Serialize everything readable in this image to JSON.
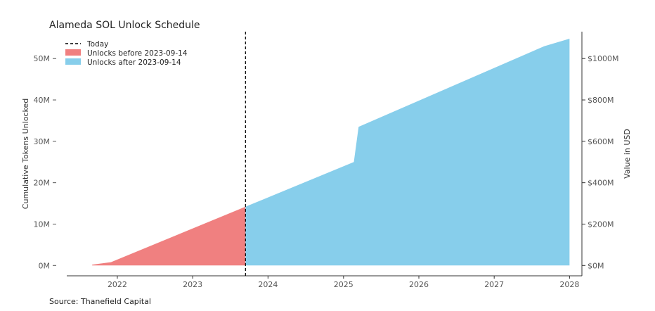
{
  "chart_data": {
    "type": "area",
    "title": "Alameda SOL Unlock Schedule",
    "source": "Source: Thanefield Capital",
    "ylabel": "Cumulative Tokens Unlocked",
    "y2label": "Value in USD",
    "xlim": [
      "2021-05-01",
      "2028-03-01"
    ],
    "ylim": [
      -2500000,
      56500000
    ],
    "y2lim": [
      -50000000,
      1130000000
    ],
    "x_ticks": [
      {
        "value": "2022-01-01",
        "label": "2022"
      },
      {
        "value": "2023-01-01",
        "label": "2023"
      },
      {
        "value": "2024-01-01",
        "label": "2024"
      },
      {
        "value": "2025-01-01",
        "label": "2025"
      },
      {
        "value": "2026-01-01",
        "label": "2026"
      },
      {
        "value": "2027-01-01",
        "label": "2027"
      },
      {
        "value": "2028-01-01",
        "label": "2028"
      }
    ],
    "y_ticks": [
      {
        "value": 0,
        "label": "0M"
      },
      {
        "value": 10000000,
        "label": "10M"
      },
      {
        "value": 20000000,
        "label": "20M"
      },
      {
        "value": 30000000,
        "label": "30M"
      },
      {
        "value": 40000000,
        "label": "40M"
      },
      {
        "value": 50000000,
        "label": "50M"
      }
    ],
    "y2_ticks": [
      {
        "value": 0,
        "label": "$0M"
      },
      {
        "value": 200000000,
        "label": "$200M"
      },
      {
        "value": 400000000,
        "label": "$400M"
      },
      {
        "value": 600000000,
        "label": "$600M"
      },
      {
        "value": 800000000,
        "label": "$800M"
      },
      {
        "value": 1000000000,
        "label": "$1000M"
      }
    ],
    "today": "2023-09-14",
    "legend": {
      "position": "top-left",
      "entries": [
        {
          "label": "Today",
          "style": "dashed-line",
          "color": "#000000"
        },
        {
          "label": "Unlocks before 2023-09-14",
          "style": "patch",
          "color": "#F08080"
        },
        {
          "label": "Unlocks after 2023-09-14",
          "style": "patch",
          "color": "#87CEEB"
        }
      ]
    },
    "series": [
      {
        "name": "Unlocks before 2023-09-14",
        "color": "#F08080",
        "points": [
          {
            "x": "2021-09-01",
            "y": 200000
          },
          {
            "x": "2021-12-01",
            "y": 800000
          },
          {
            "x": "2023-09-14",
            "y": 14200000
          }
        ]
      },
      {
        "name": "Unlocks after 2023-09-14",
        "color": "#87CEEB",
        "points": [
          {
            "x": "2023-09-14",
            "y": 14200000
          },
          {
            "x": "2025-02-20",
            "y": 25000000
          },
          {
            "x": "2025-03-15",
            "y": 33500000
          },
          {
            "x": "2027-09-01",
            "y": 53000000
          },
          {
            "x": "2028-01-01",
            "y": 54800000
          }
        ]
      }
    ]
  }
}
